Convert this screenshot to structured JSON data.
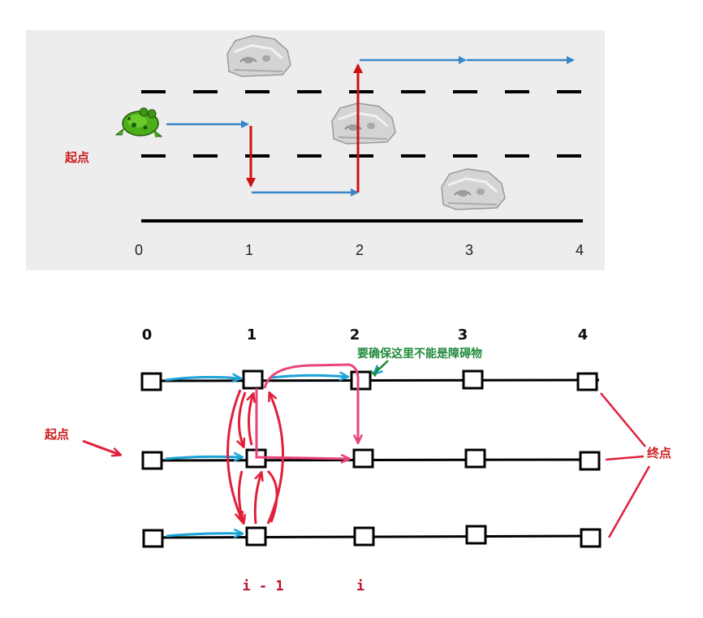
{
  "top_panel": {
    "background": "#ededed",
    "start_label": "起点",
    "positions": [
      "0",
      "1",
      "2",
      "3",
      "4"
    ]
  },
  "bottom_panel": {
    "positions": [
      "0",
      "1",
      "2",
      "3",
      "4"
    ],
    "start_label": "起点",
    "end_label": "终点",
    "note": "要确保这里不能是障碍物",
    "index_prev": "i - 1",
    "index_cur": "i"
  },
  "colors": {
    "blue_arrow": "#3a86c8",
    "red_arrow": "#cc1111",
    "cyan_arrow": "#1aa3d8",
    "crimson_arrow": "#e0203a",
    "pink_arrow": "#e8457a",
    "note_green": "#1f8a3a",
    "frog_green": "#4caf1a",
    "rock_gray": "#c9c9c9"
  },
  "icons": [
    "frog-icon",
    "rock-icon"
  ]
}
